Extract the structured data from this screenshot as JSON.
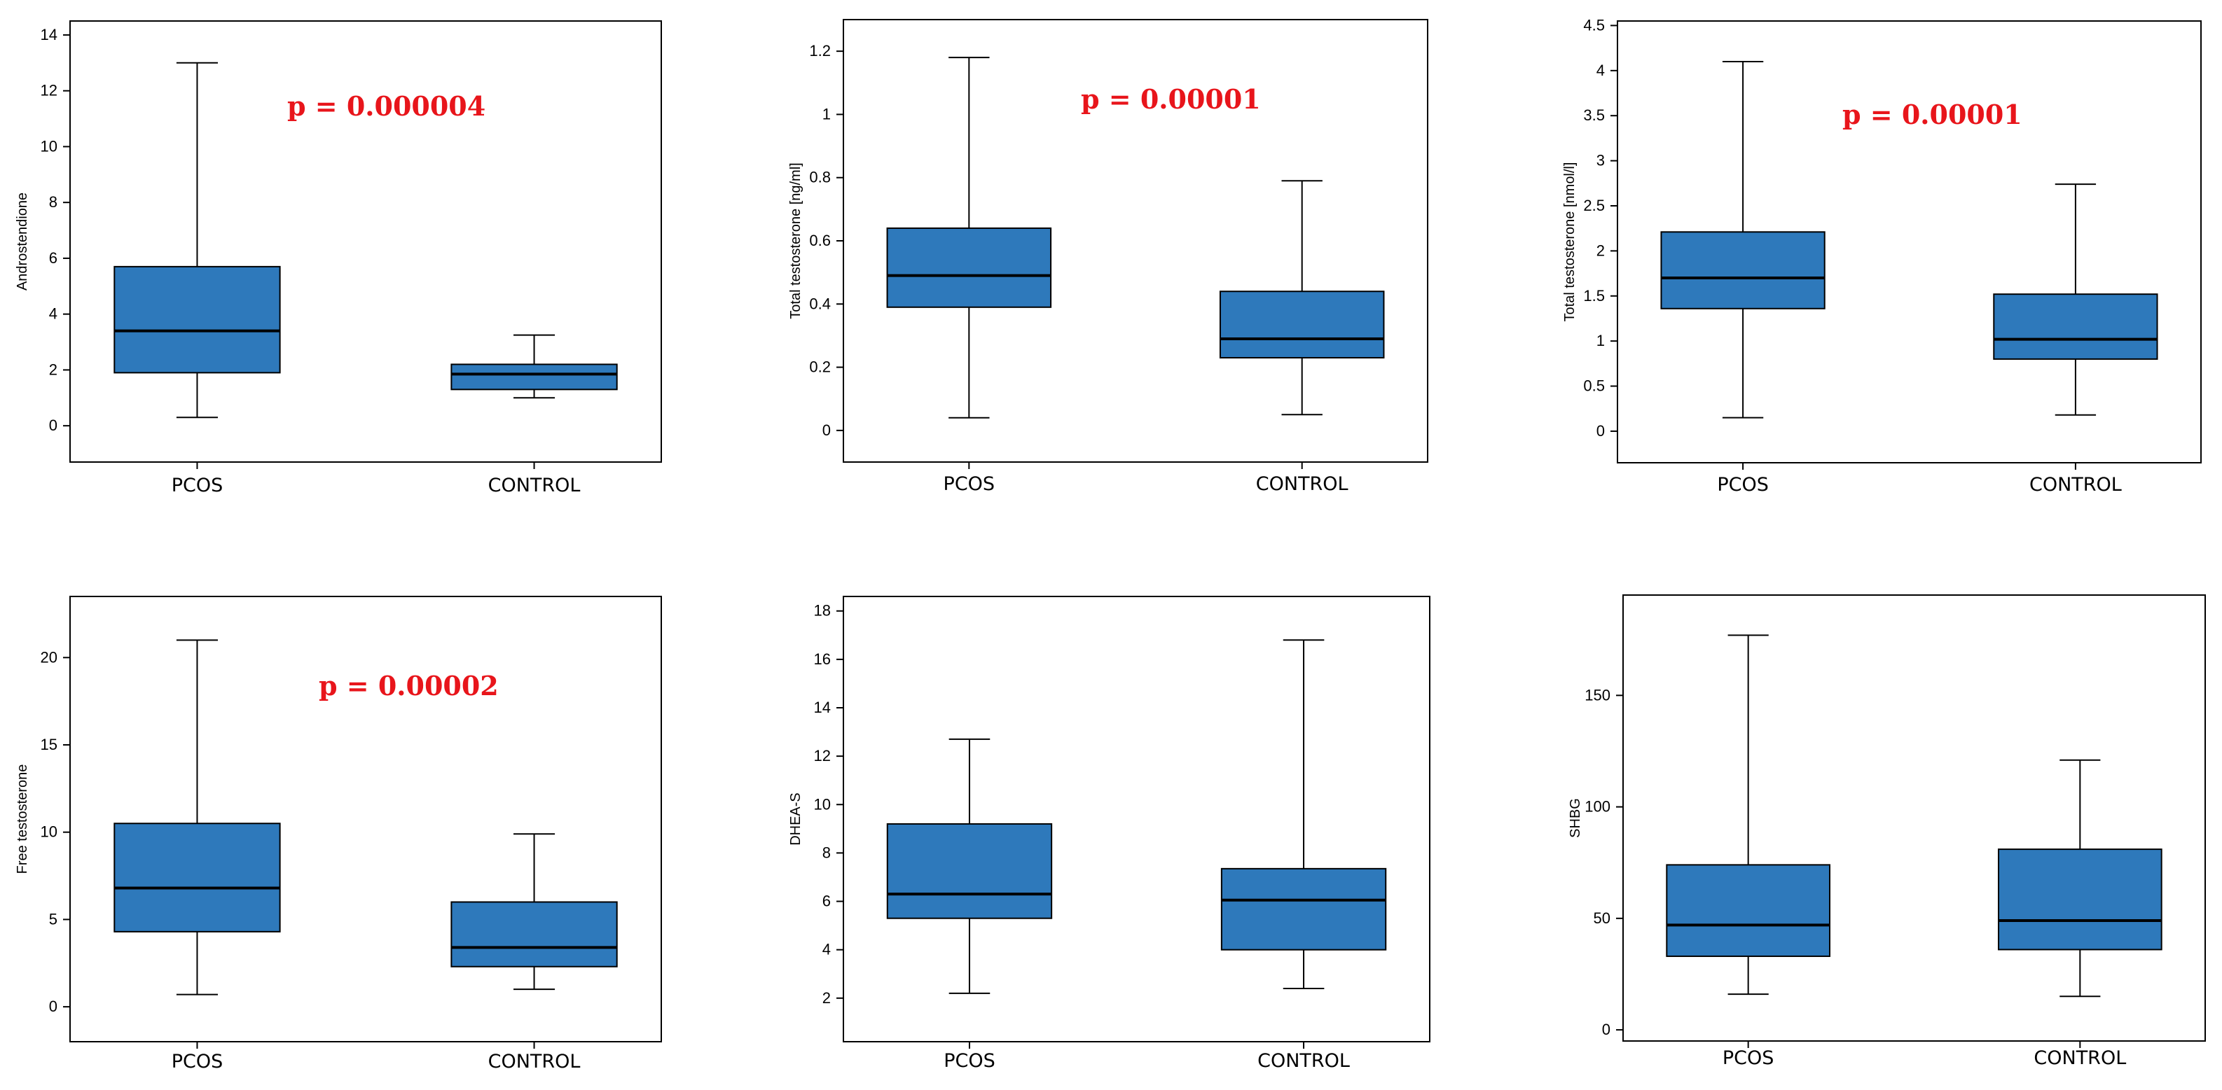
{
  "chart_data": [
    {
      "type": "boxplot",
      "ylabel": "Androstendione",
      "ylim": [
        -1.3,
        14.5
      ],
      "yticks": [
        0,
        2,
        4,
        6,
        8,
        10,
        12,
        14
      ],
      "categories": [
        "PCOS",
        "CONTROL"
      ],
      "series": [
        {
          "name": "PCOS",
          "min": 0.3,
          "q1": 1.9,
          "median": 3.4,
          "q3": 5.7,
          "max": 13.0
        },
        {
          "name": "CONTROL",
          "min": 1.0,
          "q1": 1.3,
          "median": 1.85,
          "q3": 2.2,
          "max": 3.25
        }
      ],
      "annotation": "p = 0.000004"
    },
    {
      "type": "boxplot",
      "ylabel": "Total testosterone [ng/ml]",
      "ylim": [
        -0.1,
        1.3
      ],
      "yticks": [
        0,
        0.2,
        0.4,
        0.6,
        0.8,
        1,
        1.2
      ],
      "categories": [
        "PCOS",
        "CONTROL"
      ],
      "series": [
        {
          "name": "PCOS",
          "min": 0.04,
          "q1": 0.39,
          "median": 0.49,
          "q3": 0.64,
          "max": 1.18
        },
        {
          "name": "CONTROL",
          "min": 0.05,
          "q1": 0.23,
          "median": 0.29,
          "q3": 0.44,
          "max": 0.79
        }
      ],
      "annotation": "p = 0.00001"
    },
    {
      "type": "boxplot",
      "ylabel": "Total testosterone [nmol/l]",
      "ylim": [
        -0.35,
        4.55
      ],
      "yticks": [
        0,
        0.5,
        1,
        1.5,
        2,
        2.5,
        3,
        3.5,
        4,
        4.5
      ],
      "categories": [
        "PCOS",
        "CONTROL"
      ],
      "series": [
        {
          "name": "PCOS",
          "min": 0.15,
          "q1": 1.36,
          "median": 1.7,
          "q3": 2.21,
          "max": 4.1
        },
        {
          "name": "CONTROL",
          "min": 0.18,
          "q1": 0.8,
          "median": 1.02,
          "q3": 1.52,
          "max": 2.74
        }
      ],
      "annotation": "p = 0.00001"
    },
    {
      "type": "boxplot",
      "ylabel": "Free testosterone",
      "ylim": [
        -2.0,
        23.5
      ],
      "yticks": [
        0,
        5,
        10,
        15,
        20
      ],
      "categories": [
        "PCOS",
        "CONTROL"
      ],
      "series": [
        {
          "name": "PCOS",
          "min": 0.7,
          "q1": 4.3,
          "median": 6.8,
          "q3": 10.5,
          "max": 21.0
        },
        {
          "name": "CONTROL",
          "min": 1.0,
          "q1": 2.3,
          "median": 3.4,
          "q3": 6.0,
          "max": 9.9
        }
      ],
      "annotation": "p = 0.00002"
    },
    {
      "type": "boxplot",
      "ylabel": "DHEA-S",
      "ylim": [
        0.2,
        18.6
      ],
      "yticks": [
        2,
        4,
        6,
        8,
        10,
        12,
        14,
        16,
        18
      ],
      "categories": [
        "PCOS",
        "CONTROL"
      ],
      "series": [
        {
          "name": "PCOS",
          "min": 2.2,
          "q1": 5.3,
          "median": 6.3,
          "q3": 9.2,
          "max": 12.7
        },
        {
          "name": "CONTROL",
          "min": 2.4,
          "q1": 4.0,
          "median": 6.05,
          "q3": 7.35,
          "max": 16.8
        }
      ],
      "annotation": ""
    },
    {
      "type": "boxplot",
      "ylabel": "SHBG",
      "ylim": [
        -5,
        195
      ],
      "yticks": [
        0,
        50,
        100,
        150
      ],
      "categories": [
        "PCOS",
        "CONTROL"
      ],
      "series": [
        {
          "name": "PCOS",
          "min": 16,
          "q1": 33,
          "median": 47,
          "q3": 74,
          "max": 177
        },
        {
          "name": "CONTROL",
          "min": 15,
          "q1": 36,
          "median": 49,
          "q3": 81,
          "max": 121
        }
      ],
      "annotation": ""
    }
  ],
  "colors": {
    "box_fill": "#2e79bb",
    "annotation": "#e8151b"
  }
}
